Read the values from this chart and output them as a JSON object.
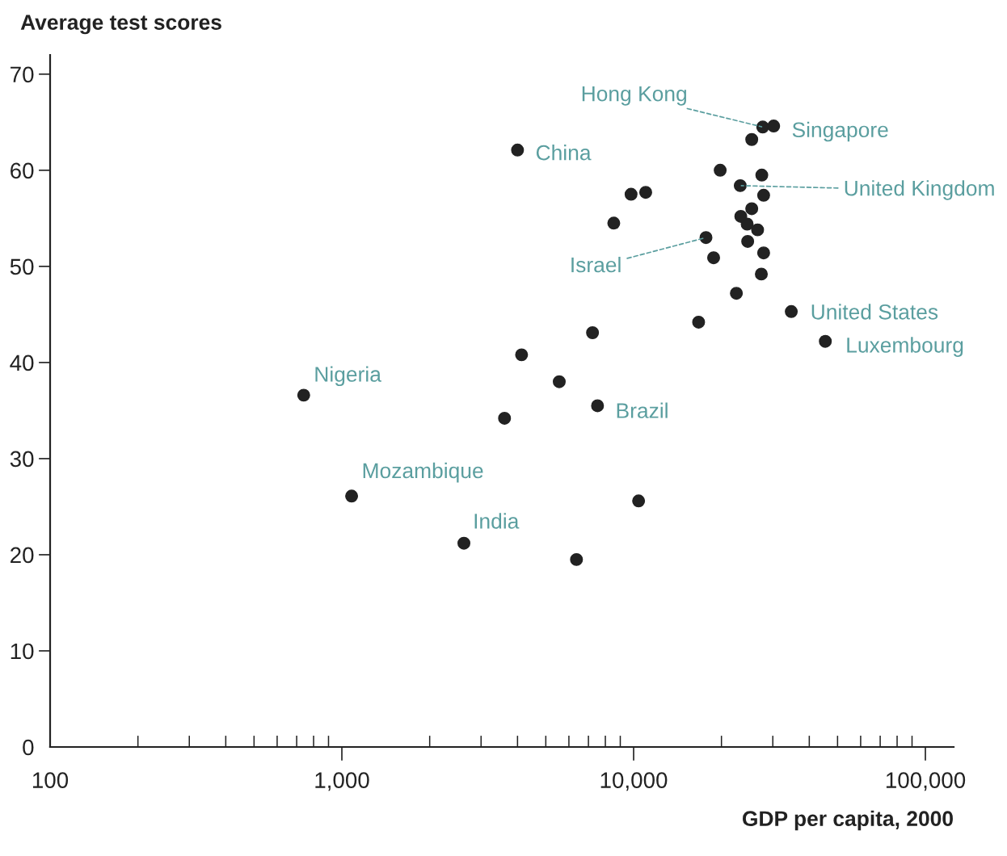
{
  "chart_data": {
    "type": "scatter",
    "xlabel": "GDP per capita, 2000",
    "ylabel": "Average test scores",
    "series": [
      {
        "color": "#222222",
        "x": [
          740,
          1080,
          2620,
          4000,
          3610,
          4130,
          5560,
          7230,
          7520,
          6370,
          10400,
          8550,
          9800,
          11000,
          16700,
          27700,
          30200,
          25400,
          19800,
          27500,
          23200,
          27900,
          25400,
          23300,
          24500,
          26600,
          24600,
          17700,
          18800,
          27900,
          27400,
          22500,
          34700,
          45400
        ],
        "values": [
          36.6,
          26.1,
          21.2,
          62.1,
          34.2,
          40.8,
          38.0,
          43.1,
          35.5,
          19.5,
          25.6,
          54.5,
          57.5,
          57.7,
          44.2,
          64.5,
          64.6,
          63.2,
          60.0,
          59.5,
          58.4,
          57.4,
          56.0,
          55.2,
          54.4,
          53.8,
          52.6,
          53.0,
          50.9,
          51.4,
          49.2,
          47.2,
          45.3,
          42.2
        ]
      }
    ],
    "marker": "circle",
    "log": "x",
    "xlim": [
      100,
      125000
    ],
    "ylim": [
      0,
      72
    ],
    "xticks": [
      {
        "value": 100,
        "label": "100"
      },
      {
        "value": 200,
        "label": null
      },
      {
        "value": 300,
        "label": null
      },
      {
        "value": 400,
        "label": null
      },
      {
        "value": 500,
        "label": null
      },
      {
        "value": 600,
        "label": null
      },
      {
        "value": 700,
        "label": null
      },
      {
        "value": 800,
        "label": null
      },
      {
        "value": 900,
        "label": null
      },
      {
        "value": 1000,
        "label": "1,000"
      },
      {
        "value": 2000,
        "label": null
      },
      {
        "value": 3000,
        "label": null
      },
      {
        "value": 4000,
        "label": null
      },
      {
        "value": 5000,
        "label": null
      },
      {
        "value": 6000,
        "label": null
      },
      {
        "value": 7000,
        "label": null
      },
      {
        "value": 8000,
        "label": null
      },
      {
        "value": 9000,
        "label": null
      },
      {
        "value": 10000,
        "label": "10,000"
      },
      {
        "value": 20000,
        "label": null
      },
      {
        "value": 30000,
        "label": null
      },
      {
        "value": 40000,
        "label": null
      },
      {
        "value": 50000,
        "label": null
      },
      {
        "value": 60000,
        "label": null
      },
      {
        "value": 70000,
        "label": null
      },
      {
        "value": 80000,
        "label": null
      },
      {
        "value": 90000,
        "label": null
      },
      {
        "value": 100000,
        "label": "100,000"
      }
    ],
    "yticks": [
      0,
      10,
      20,
      30,
      40,
      50,
      60,
      70
    ],
    "annotations": [
      {
        "text": "Nigeria",
        "x": 740,
        "y": 36.6
      },
      {
        "text": "Mozambique",
        "x": 1080,
        "y": 26.1
      },
      {
        "text": "India",
        "x": 2620,
        "y": 21.2
      },
      {
        "text": "China",
        "x": 4000,
        "y": 62.1
      },
      {
        "text": "Brazil",
        "x": 7520,
        "y": 35.5
      },
      {
        "text": "Hong Kong",
        "x": 27700,
        "y": 64.5
      },
      {
        "text": "Singapore",
        "x": 30200,
        "y": 64.6
      },
      {
        "text": "United Kingdom",
        "x": 23200,
        "y": 58.4
      },
      {
        "text": "Israel",
        "x": 17700,
        "y": 53.0
      },
      {
        "text": "United States",
        "x": 34700,
        "y": 45.3
      },
      {
        "text": "Luxembourg",
        "x": 45400,
        "y": 42.2
      }
    ],
    "grid": false
  }
}
